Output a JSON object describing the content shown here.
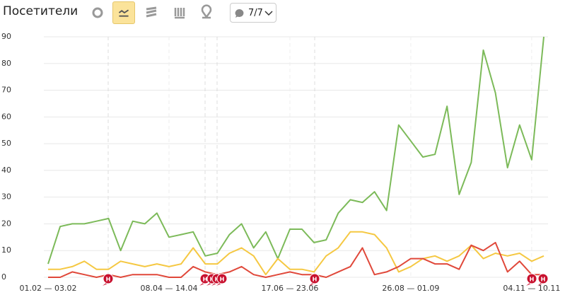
{
  "header": {
    "title": "Посетители",
    "filter_button": "7/7"
  },
  "chart_data": {
    "type": "line",
    "categories": [
      "01.02 — 03.02",
      null,
      null,
      null,
      null,
      null,
      null,
      null,
      null,
      null,
      "08.04 — 14.04",
      null,
      null,
      null,
      null,
      null,
      null,
      null,
      null,
      null,
      "17.06 — 23.06",
      null,
      null,
      null,
      null,
      null,
      null,
      null,
      null,
      null,
      "26.08 — 01.09",
      null,
      null,
      null,
      null,
      null,
      null,
      null,
      null,
      null,
      "04.11 — 10.11",
      null
    ],
    "series": [
      {
        "color": "#7cba59",
        "values": [
          5,
          19,
          20,
          20,
          21,
          22,
          10,
          21,
          20,
          24,
          15,
          16,
          17,
          8,
          9,
          16,
          20,
          11,
          17,
          7,
          18,
          18,
          13,
          14,
          24,
          29,
          28,
          32,
          25,
          57,
          51,
          45,
          46,
          64,
          31,
          43,
          85,
          69,
          41,
          57,
          44,
          90
        ]
      },
      {
        "color": "#f5c842",
        "values": [
          3,
          3,
          4,
          6,
          3,
          3,
          6,
          5,
          4,
          5,
          4,
          5,
          11,
          5,
          5,
          9,
          11,
          8,
          1,
          7,
          3,
          3,
          2,
          8,
          11,
          17,
          17,
          16,
          11,
          2,
          4,
          7,
          8,
          6,
          8,
          12,
          7,
          9,
          8,
          9,
          6,
          8
        ]
      },
      {
        "color": "#e0483a",
        "values": [
          0,
          0,
          2,
          1,
          0,
          1,
          0,
          1,
          1,
          1,
          0,
          0,
          4,
          2,
          1,
          2,
          4,
          1,
          0,
          1,
          2,
          1,
          1,
          0,
          2,
          4,
          11,
          1,
          2,
          4,
          7,
          7,
          5,
          5,
          3,
          12,
          10,
          13,
          2,
          6,
          1,
          1
        ]
      }
    ],
    "ylim": [
      0,
      90
    ],
    "yticks": [
      0,
      10,
      20,
      30,
      40,
      50,
      60,
      70,
      80,
      90
    ],
    "grid": true,
    "annotations": [
      "Н",
      "Н",
      "Н",
      "Н",
      "Н",
      "Н",
      "Н",
      "Н"
    ]
  }
}
